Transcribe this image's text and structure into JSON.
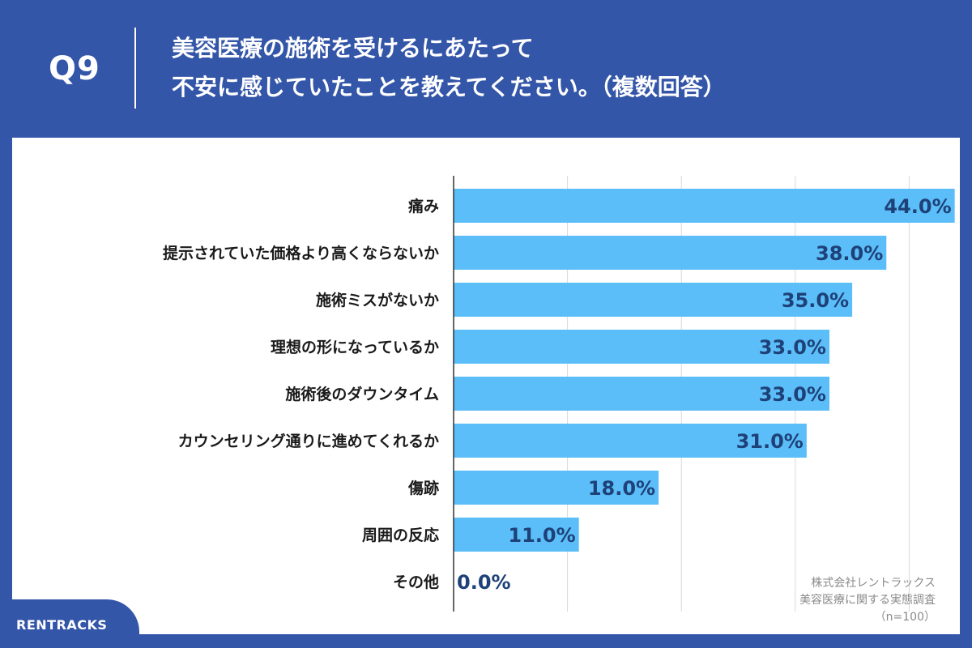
{
  "header": {
    "question_label": "Q9",
    "title_lines": [
      "美容医療の施術を受けるにあたって",
      "不安に感じていたことを教えてください。（複数回答）"
    ]
  },
  "chart_data": {
    "type": "bar",
    "orientation": "horizontal",
    "categories": [
      "痛み",
      "提示されていた価格より高くならないか",
      "施術ミスがないか",
      "理想の形になっているか",
      "施術後のダウンタイム",
      "カウンセリング通りに進めてくれるか",
      "傷跡",
      "周囲の反応",
      "その他"
    ],
    "values": [
      44.0,
      38.0,
      35.0,
      33.0,
      33.0,
      31.0,
      18.0,
      11.0,
      0.0
    ],
    "value_labels": [
      "44.0%",
      "38.0%",
      "35.0%",
      "33.0%",
      "33.0%",
      "31.0%",
      "18.0%",
      "11.0%",
      "0.0%"
    ],
    "xlim": [
      0,
      50
    ],
    "grid": true,
    "bar_color": "#5bbef9",
    "value_label_color": "#1e4178"
  },
  "source": {
    "lines": [
      "株式会社レントラックス",
      "美容医療に関する実態調査",
      "（n=100）"
    ]
  },
  "brand": {
    "name": "RENTRACKS"
  },
  "colors": {
    "background": "#3456a8",
    "panel": "#ffffff",
    "grid": "#d8d8d8"
  }
}
